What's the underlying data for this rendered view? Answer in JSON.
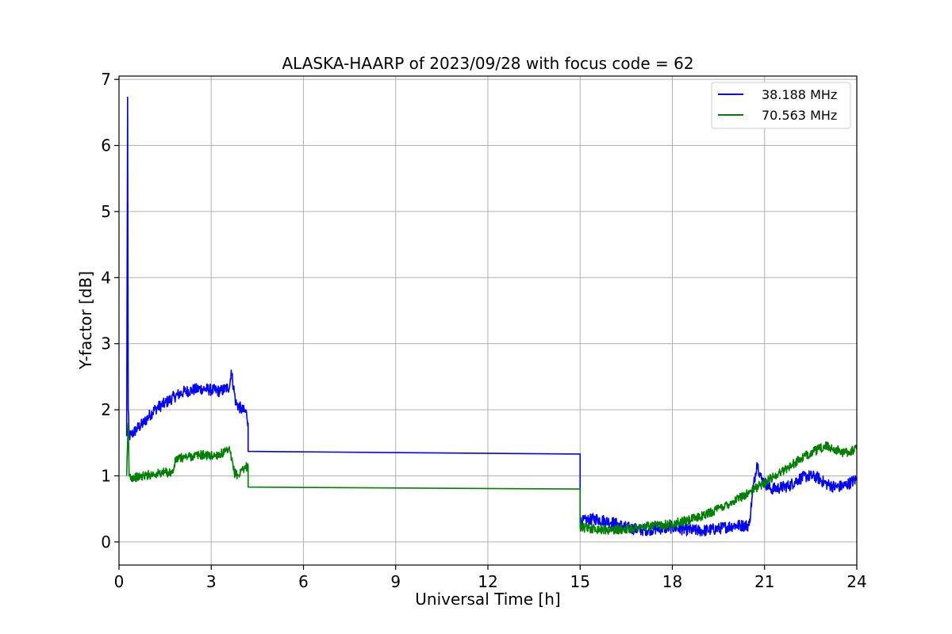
{
  "chart_data": {
    "type": "line",
    "title": "ALASKA-HAARP of 2023/09/28 with focus code = 62",
    "xlabel": "Universal Time [h]",
    "ylabel": "Y-factor [dB]",
    "xlim": [
      0,
      24
    ],
    "ylim": [
      -0.35,
      7.05
    ],
    "xticks": [
      0,
      3,
      6,
      9,
      12,
      15,
      18,
      21,
      24
    ],
    "yticks": [
      0,
      1,
      2,
      3,
      4,
      5,
      6,
      7
    ],
    "grid": true,
    "legend_position": "top-right",
    "series": [
      {
        "name": "38.188 MHz",
        "color": "#0000ff",
        "x": [
          0.25,
          0.28,
          0.3,
          0.33,
          0.4,
          0.6,
          0.8,
          1.0,
          1.2,
          1.5,
          1.8,
          2.1,
          2.4,
          2.7,
          3.0,
          3.3,
          3.6,
          3.65,
          3.8,
          4.0,
          4.15,
          4.2,
          4.2,
          15.0,
          15.0,
          15.5,
          16.0,
          16.5,
          17.0,
          17.5,
          18.0,
          18.5,
          19.0,
          19.5,
          20.0,
          20.5,
          20.6,
          20.75,
          20.9,
          21.2,
          21.5,
          21.8,
          22.1,
          22.4,
          22.7,
          23.0,
          23.3,
          23.6,
          24.0
        ],
        "y": [
          1.6,
          6.73,
          2.0,
          1.6,
          1.62,
          1.72,
          1.8,
          1.92,
          2.02,
          2.1,
          2.2,
          2.27,
          2.3,
          2.32,
          2.3,
          2.28,
          2.35,
          2.6,
          2.1,
          2.0,
          1.95,
          1.8,
          1.37,
          1.33,
          0.3,
          0.35,
          0.3,
          0.22,
          0.18,
          0.2,
          0.22,
          0.18,
          0.17,
          0.2,
          0.25,
          0.25,
          0.7,
          1.2,
          0.95,
          0.8,
          0.82,
          0.85,
          0.95,
          1.0,
          0.98,
          0.88,
          0.83,
          0.85,
          0.95
        ]
      },
      {
        "name": "70.563 MHz",
        "color": "#008000",
        "x": [
          0.25,
          0.3,
          0.33,
          0.4,
          0.6,
          0.8,
          1.0,
          1.2,
          1.5,
          1.75,
          1.85,
          2.1,
          2.4,
          2.7,
          3.0,
          3.3,
          3.6,
          3.75,
          3.9,
          4.0,
          4.2,
          4.2,
          15.0,
          15.0,
          15.5,
          16.0,
          16.5,
          17.0,
          17.5,
          18.0,
          18.5,
          19.0,
          19.5,
          20.0,
          20.5,
          21.0,
          21.5,
          22.0,
          22.5,
          23.0,
          23.3,
          23.6,
          24.0
        ],
        "y": [
          1.0,
          1.8,
          1.0,
          0.98,
          0.98,
          1.0,
          1.02,
          1.03,
          1.05,
          1.05,
          1.25,
          1.28,
          1.3,
          1.32,
          1.3,
          1.33,
          1.38,
          1.05,
          1.0,
          1.1,
          1.15,
          0.83,
          0.8,
          0.22,
          0.2,
          0.18,
          0.2,
          0.22,
          0.25,
          0.28,
          0.32,
          0.4,
          0.5,
          0.62,
          0.75,
          0.9,
          1.05,
          1.2,
          1.35,
          1.45,
          1.4,
          1.35,
          1.4
        ]
      }
    ]
  }
}
